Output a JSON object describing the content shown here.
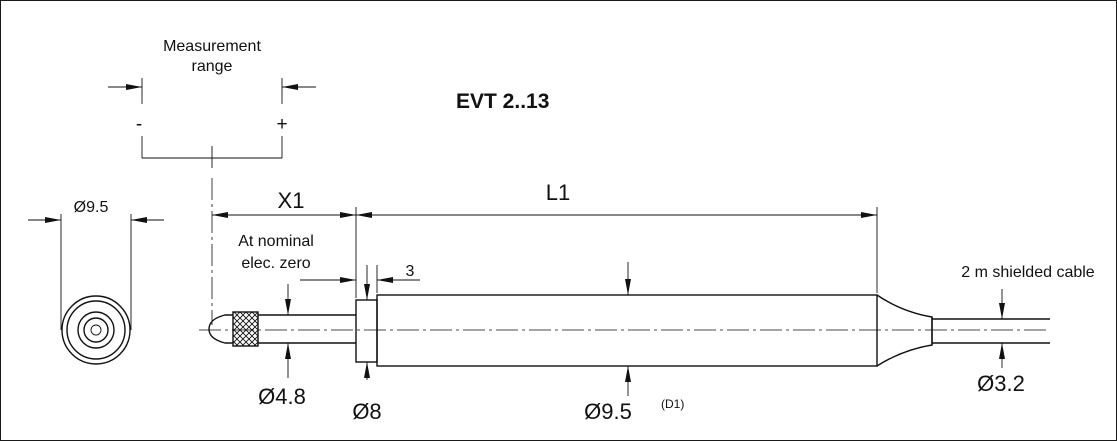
{
  "title": "EVT 2..13",
  "measurement_range": {
    "line1": "Measurement",
    "line2": "range",
    "minus": "-",
    "plus": "+"
  },
  "dimensions": {
    "end_view_dia": "Ø9.5",
    "x1": "X1",
    "x1_note_line1": "At nominal",
    "x1_note_line2": "elec. zero",
    "l1": "L1",
    "collar_width": "3",
    "tip_dia": "Ø4.8",
    "collar_dia": "Ø8",
    "body_dia": "Ø9.5",
    "body_dia_note": "(D1)",
    "cable_dia": "Ø3.2",
    "cable_note": "2 m shielded cable"
  }
}
